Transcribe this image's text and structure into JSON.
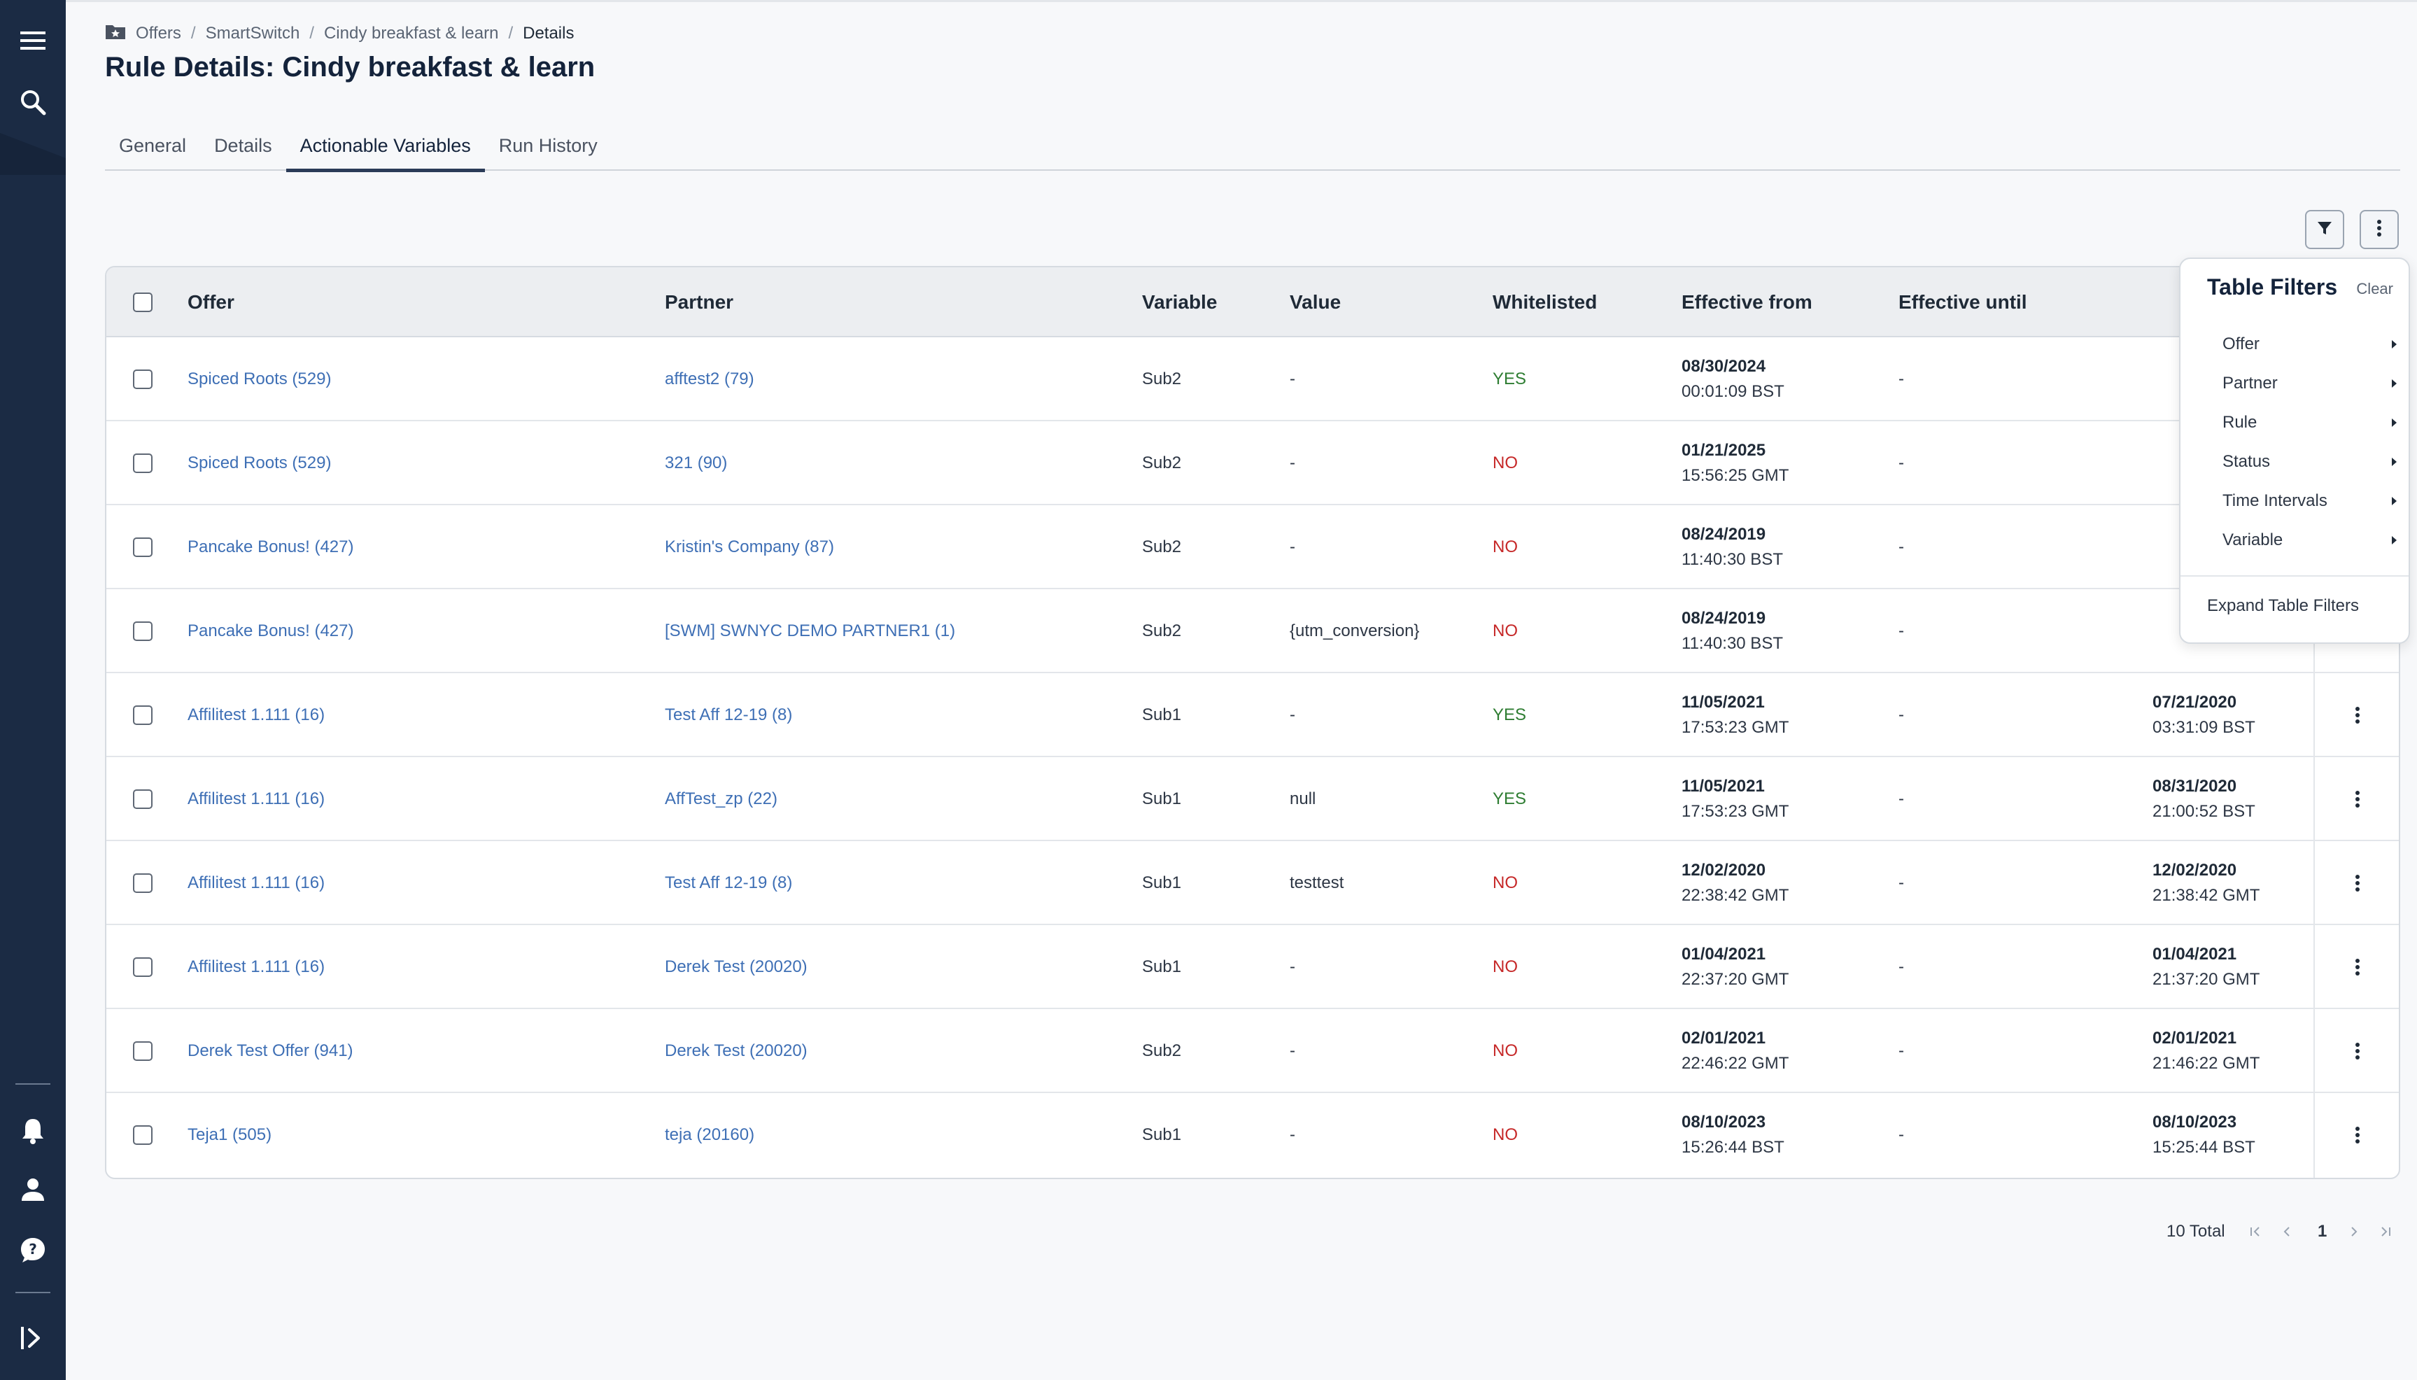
{
  "breadcrumb": [
    "Offers",
    "SmartSwitch",
    "Cindy breakfast & learn",
    "Details"
  ],
  "page": {
    "title": "Rule Details: Cindy breakfast & learn"
  },
  "tabs": [
    "General",
    "Details",
    "Actionable Variables",
    "Run History"
  ],
  "active_tab": "Actionable Variables",
  "columns": {
    "offer": "Offer",
    "partner": "Partner",
    "variable": "Variable",
    "value": "Value",
    "whitelisted": "Whitelisted",
    "effective_from": "Effective from",
    "effective_until": "Effective until"
  },
  "rows": [
    {
      "offer": "Spiced Roots (529)",
      "partner": "afftest2 (79)",
      "variable": "Sub2",
      "value": "-",
      "whitelisted": "YES",
      "from_date": "08/30/2024",
      "from_time": "00:01:09 BST",
      "until": "-",
      "created_date": "",
      "created_time": ""
    },
    {
      "offer": "Spiced Roots (529)",
      "partner": "321 (90)",
      "variable": "Sub2",
      "value": "-",
      "whitelisted": "NO",
      "from_date": "01/21/2025",
      "from_time": "15:56:25 GMT",
      "until": "-",
      "created_date": "",
      "created_time": ""
    },
    {
      "offer": "Pancake Bonus! (427)",
      "partner": "Kristin's Company (87)",
      "variable": "Sub2",
      "value": "-",
      "whitelisted": "NO",
      "from_date": "08/24/2019",
      "from_time": "11:40:30 BST",
      "until": "-",
      "created_date": "",
      "created_time": ""
    },
    {
      "offer": "Pancake Bonus! (427)",
      "partner": "[SWM] SWNYC DEMO PARTNER1 (1)",
      "variable": "Sub2",
      "value": "{utm_conversion}",
      "whitelisted": "NO",
      "from_date": "08/24/2019",
      "from_time": "11:40:30 BST",
      "until": "-",
      "created_date": "",
      "created_time": ""
    },
    {
      "offer": "Affilitest 1.111 (16)",
      "partner": "Test Aff 12-19 (8)",
      "variable": "Sub1",
      "value": "-",
      "whitelisted": "YES",
      "from_date": "11/05/2021",
      "from_time": "17:53:23 GMT",
      "until": "-",
      "created_date": "07/21/2020",
      "created_time": "03:31:09 BST"
    },
    {
      "offer": "Affilitest 1.111 (16)",
      "partner": "AffTest_zp (22)",
      "variable": "Sub1",
      "value": "null",
      "whitelisted": "YES",
      "from_date": "11/05/2021",
      "from_time": "17:53:23 GMT",
      "until": "-",
      "created_date": "08/31/2020",
      "created_time": "21:00:52 BST"
    },
    {
      "offer": "Affilitest 1.111 (16)",
      "partner": "Test Aff 12-19 (8)",
      "variable": "Sub1",
      "value": "testtest",
      "whitelisted": "NO",
      "from_date": "12/02/2020",
      "from_time": "22:38:42 GMT",
      "until": "-",
      "created_date": "12/02/2020",
      "created_time": "21:38:42 GMT"
    },
    {
      "offer": "Affilitest 1.111 (16)",
      "partner": "Derek Test (20020)",
      "variable": "Sub1",
      "value": "-",
      "whitelisted": "NO",
      "from_date": "01/04/2021",
      "from_time": "22:37:20 GMT",
      "until": "-",
      "created_date": "01/04/2021",
      "created_time": "21:37:20 GMT"
    },
    {
      "offer": "Derek Test Offer (941)",
      "partner": "Derek Test (20020)",
      "variable": "Sub2",
      "value": "-",
      "whitelisted": "NO",
      "from_date": "02/01/2021",
      "from_time": "22:46:22 GMT",
      "until": "-",
      "created_date": "02/01/2021",
      "created_time": "21:46:22 GMT"
    },
    {
      "offer": "Teja1 (505)",
      "partner": "teja (20160)",
      "variable": "Sub1",
      "value": "-",
      "whitelisted": "NO",
      "from_date": "08/10/2023",
      "from_time": "15:26:44 BST",
      "until": "-",
      "created_date": "08/10/2023",
      "created_time": "15:25:44 BST"
    }
  ],
  "filters": {
    "title": "Table Filters",
    "clear": "Clear",
    "items": [
      "Offer",
      "Partner",
      "Rule",
      "Status",
      "Time Intervals",
      "Variable"
    ],
    "expand": "Expand Table Filters"
  },
  "pagination": {
    "total": "10 Total",
    "current_page": "1"
  },
  "colors": {
    "link": "#3e6fb5",
    "yes": "#2e7d32",
    "no": "#c62828",
    "sidebar": "#1b2b44"
  },
  "icons": {
    "sidebar_top": [
      "menu-icon",
      "search-icon"
    ],
    "sidebar_bottom": [
      "bell-icon",
      "user-icon",
      "help-icon",
      "expand-sidebar-icon"
    ],
    "toolbar": [
      "filter-icon",
      "more-vertical-icon"
    ]
  }
}
